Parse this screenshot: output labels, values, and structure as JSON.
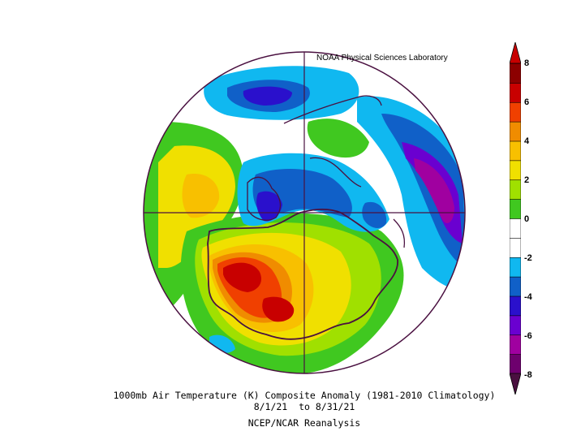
{
  "header": {
    "credit": "NOAA Physical Sciences Laboratory"
  },
  "titles": {
    "line1": "1000mb Air Temperature (K) Composite Anomaly (1981-2010 Climatology)",
    "line2": "8/1/21  to 8/31/21",
    "line3": "NCEP/NCAR Reanalysis"
  },
  "map": {
    "projection": "south-polar-stereographic",
    "features": [
      "antarctic-coastline",
      "southern-ocean",
      "graticule-cross"
    ]
  },
  "colorbar": {
    "tick_labels": [
      "8",
      "6",
      "4",
      "2",
      "0",
      "-2",
      "-4",
      "-6",
      "-8"
    ],
    "colors": [
      "#6e006e",
      "#a000a0",
      "#6a00d0",
      "#2a10cc",
      "#1060c8",
      "#10b8f0",
      "#ffffff",
      "#ffffff",
      "#40c820",
      "#a0e000",
      "#f0e000",
      "#f8c000",
      "#f08c00",
      "#f04000",
      "#c80000",
      "#8c0000"
    ]
  }
}
